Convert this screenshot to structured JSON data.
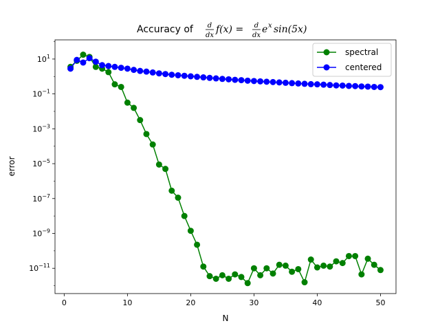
{
  "chart_data": {
    "type": "line",
    "title": {
      "prefix": "Accuracy of ",
      "d_num": "d",
      "dx_den": "dx",
      "f_of_x": "f(x) = ",
      "e": "e",
      "exp": "x",
      "sin": "sin(5x)"
    },
    "xlabel": "N",
    "ylabel": "error",
    "xlim": [
      -1.45,
      52.45
    ],
    "ylim_log10": [
      -12.45,
      2.1
    ],
    "yscale": "log",
    "grid": false,
    "legend_position": "top-right",
    "x_ticks": [
      0,
      10,
      20,
      30,
      40,
      50
    ],
    "x_tick_labels": [
      "0",
      "10",
      "20",
      "30",
      "40",
      "50"
    ],
    "y_ticks_log10": [
      1,
      -1,
      -3,
      -5,
      -7,
      -9,
      -11
    ],
    "y_tick_labels": [
      {
        "base": "10",
        "exp": "1"
      },
      {
        "base": "10",
        "exp": "−1"
      },
      {
        "base": "10",
        "exp": "−3"
      },
      {
        "base": "10",
        "exp": "−5"
      },
      {
        "base": "10",
        "exp": "−7"
      },
      {
        "base": "10",
        "exp": "−9"
      },
      {
        "base": "10",
        "exp": "−11"
      }
    ],
    "x": [
      1,
      2,
      3,
      4,
      5,
      6,
      7,
      8,
      9,
      10,
      11,
      12,
      13,
      14,
      15,
      16,
      17,
      18,
      19,
      20,
      21,
      22,
      23,
      24,
      25,
      26,
      27,
      28,
      29,
      30,
      31,
      32,
      33,
      34,
      35,
      36,
      37,
      38,
      39,
      40,
      41,
      42,
      43,
      44,
      45,
      46,
      47,
      48,
      49,
      50
    ],
    "series": [
      {
        "name": "spectral",
        "color": "#008000",
        "log10_values": [
          0.55,
          0.9,
          1.25,
          1.12,
          0.55,
          0.45,
          0.25,
          -0.45,
          -0.6,
          -1.5,
          -1.8,
          -2.5,
          -3.3,
          -3.9,
          -5.05,
          -5.3,
          -6.55,
          -6.95,
          -8.0,
          -8.85,
          -9.65,
          -10.9,
          -11.45,
          -11.6,
          -11.4,
          -11.6,
          -11.35,
          -11.5,
          -11.85,
          -11.0,
          -11.4,
          -11.0,
          -11.3,
          -10.8,
          -10.85,
          -11.2,
          -11.05,
          -11.8,
          -10.5,
          -10.95,
          -10.85,
          -10.9,
          -10.6,
          -10.7,
          -10.3,
          -10.3,
          -11.35,
          -10.45,
          -10.8,
          -11.1
        ]
      },
      {
        "name": "centered",
        "color": "#0000ff",
        "log10_values": [
          0.45,
          0.95,
          0.8,
          1.05,
          0.85,
          0.65,
          0.6,
          0.55,
          0.5,
          0.45,
          0.38,
          0.32,
          0.28,
          0.23,
          0.18,
          0.14,
          0.1,
          0.07,
          0.04,
          0.01,
          -0.02,
          -0.05,
          -0.08,
          -0.11,
          -0.14,
          -0.16,
          -0.19,
          -0.21,
          -0.24,
          -0.26,
          -0.28,
          -0.3,
          -0.32,
          -0.34,
          -0.36,
          -0.38,
          -0.4,
          -0.42,
          -0.44,
          -0.45,
          -0.47,
          -0.49,
          -0.51,
          -0.52,
          -0.54,
          -0.55,
          -0.57,
          -0.58,
          -0.6,
          -0.61
        ]
      }
    ]
  }
}
